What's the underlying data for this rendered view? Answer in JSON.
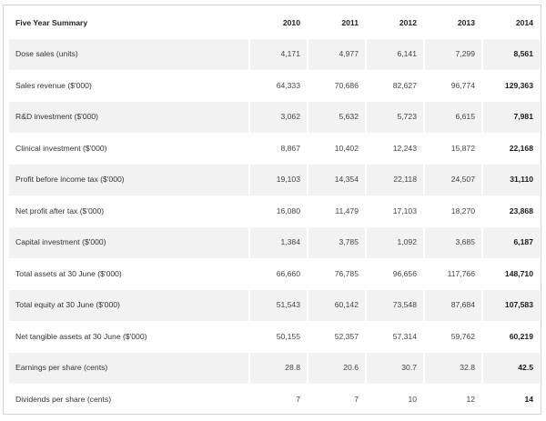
{
  "table": {
    "title": "Five Year Summary",
    "years": [
      "2010",
      "2011",
      "2012",
      "2013",
      "2014"
    ],
    "rows": [
      {
        "label": "Dose sales (units)",
        "values": [
          "4,171",
          "4,977",
          "6,141",
          "7,299",
          "8,561"
        ]
      },
      {
        "label": "Sales revenue ($'000)",
        "values": [
          "64,333",
          "70,686",
          "82,627",
          "96,774",
          "129,363"
        ]
      },
      {
        "label": "R&D investment ($'000)",
        "values": [
          "3,062",
          "5,632",
          "5,723",
          "6,615",
          "7,981"
        ]
      },
      {
        "label": "Clinical investment ($'000)",
        "values": [
          "8,867",
          "10,402",
          "12,243",
          "15,872",
          "22,168"
        ]
      },
      {
        "label": "Profit before income tax ($'000)",
        "values": [
          "19,103",
          "14,354",
          "22,118",
          "24,507",
          "31,110"
        ]
      },
      {
        "label": "Net profit after tax ($'000)",
        "values": [
          "16,080",
          "11,479",
          "17,103",
          "18,270",
          "23,868"
        ]
      },
      {
        "label": "Capital investment ($'000)",
        "values": [
          "1,384",
          "3,785",
          "1,092",
          "3,685",
          "6,187"
        ]
      },
      {
        "label": "Total assets at 30 June ($'000)",
        "values": [
          "66,660",
          "76,785",
          "96,656",
          "117,766",
          "148,710"
        ]
      },
      {
        "label": "Total equity at 30 June ($'000)",
        "values": [
          "51,543",
          "60,142",
          "73,548",
          "87,684",
          "107,583"
        ]
      },
      {
        "label": "Net tangible assets at 30 June ($'000)",
        "values": [
          "50,155",
          "52,357",
          "57,314",
          "59,762",
          "60,219"
        ]
      },
      {
        "label": "Earnings per share (cents)",
        "values": [
          "28.8",
          "20.6",
          "30.7",
          "32.8",
          "42.5"
        ]
      },
      {
        "label": "Dividends per share (cents)",
        "values": [
          "7",
          "7",
          "10",
          "12",
          "14"
        ]
      }
    ]
  }
}
